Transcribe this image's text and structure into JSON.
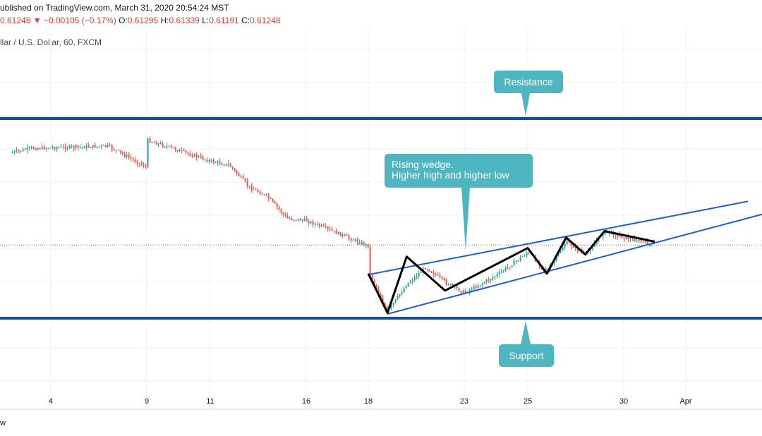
{
  "header": {
    "published": "ublished on TradingView.com, March 31, 2020 20:54:24 MST",
    "last": "0.61248",
    "change_arrow": "▼",
    "change": "−0.00105 (−0.17%)",
    "o_label": "O:",
    "o_value": "0.61295",
    "h_label": "H:",
    "h_value": "0.61339",
    "l_label": "L:",
    "l_value": "0.61191",
    "c_label": "C:",
    "c_value": "0.61248",
    "symbol": "llar / U.S. Dollar, 60, FXCM"
  },
  "footer": {
    "text": "w"
  },
  "colors": {
    "bull": "#26a69a",
    "bear": "#ef5350",
    "level_line": "#0d4f9c",
    "trend_line": "#1e5fd0",
    "callout": "#4db6c0",
    "zigzag": "#000000",
    "price_line": "#d0413d"
  },
  "chart_data": {
    "type": "candlestick",
    "interval": "60",
    "x_ticks": [
      "4",
      "9",
      "11",
      "16",
      "18",
      "23",
      "25",
      "30",
      "Apr"
    ],
    "y_axis_visible": false,
    "grid": true,
    "last_price": 0.61248,
    "approx_path": [
      {
        "date": "2020-03-02",
        "price": 0.656
      },
      {
        "date": "2020-03-03",
        "price": 0.658
      },
      {
        "date": "2020-03-05",
        "price": 0.6585
      },
      {
        "date": "2020-03-07",
        "price": 0.659
      },
      {
        "date": "2020-03-09",
        "price": 0.649
      },
      {
        "date": "2020-03-09",
        "price": 0.662
      },
      {
        "date": "2020-03-10",
        "price": 0.657
      },
      {
        "date": "2020-03-11",
        "price": 0.652
      },
      {
        "date": "2020-03-12",
        "price": 0.65
      },
      {
        "date": "2020-03-13",
        "price": 0.64
      },
      {
        "date": "2020-03-14",
        "price": 0.635
      },
      {
        "date": "2020-03-15",
        "price": 0.625
      },
      {
        "date": "2020-03-16",
        "price": 0.624
      },
      {
        "date": "2020-03-17",
        "price": 0.618
      },
      {
        "date": "2020-03-18",
        "price": 0.612
      },
      {
        "date": "2020-03-18",
        "price": 0.6
      },
      {
        "date": "2020-03-19",
        "price": 0.581
      },
      {
        "date": "2020-03-20",
        "price": 0.594
      },
      {
        "date": "2020-03-21",
        "price": 0.602
      },
      {
        "date": "2020-03-22",
        "price": 0.595
      },
      {
        "date": "2020-03-23",
        "price": 0.59
      },
      {
        "date": "2020-03-24",
        "price": 0.598
      },
      {
        "date": "2020-03-25",
        "price": 0.609
      },
      {
        "date": "2020-03-26",
        "price": 0.6
      },
      {
        "date": "2020-03-27",
        "price": 0.614
      },
      {
        "date": "2020-03-28",
        "price": 0.608
      },
      {
        "date": "2020-03-29",
        "price": 0.619
      },
      {
        "date": "2020-03-30",
        "price": 0.616
      },
      {
        "date": "2020-03-31",
        "price": 0.6125
      }
    ],
    "levels": [
      {
        "name": "Resistance",
        "price": 0.672
      },
      {
        "name": "Support",
        "price": 0.578
      }
    ],
    "wedge_upper": [
      {
        "date": "2020-03-18",
        "price": 0.5985
      },
      {
        "date": "2020-04-03",
        "price": 0.633
      }
    ],
    "wedge_lower": [
      {
        "date": "2020-03-19",
        "price": 0.58
      },
      {
        "date": "2020-04-04",
        "price": 0.629
      }
    ],
    "wedge_pivots": [
      {
        "date": "2020-03-18",
        "price": 0.599
      },
      {
        "date": "2020-03-19",
        "price": 0.5805
      },
      {
        "date": "2020-03-20",
        "price": 0.607
      },
      {
        "date": "2020-03-22",
        "price": 0.591
      },
      {
        "date": "2020-03-25",
        "price": 0.611
      },
      {
        "date": "2020-03-26",
        "price": 0.599
      },
      {
        "date": "2020-03-27",
        "price": 0.616
      },
      {
        "date": "2020-03-28",
        "price": 0.608
      },
      {
        "date": "2020-03-29",
        "price": 0.619
      },
      {
        "date": "2020-03-31",
        "price": 0.614
      }
    ],
    "annotations": [
      {
        "name": "resistance",
        "text": "Resistance"
      },
      {
        "name": "wedge",
        "text": "Rising wedge.\nHigher high and higher low"
      },
      {
        "name": "support",
        "text": "Support"
      }
    ]
  }
}
